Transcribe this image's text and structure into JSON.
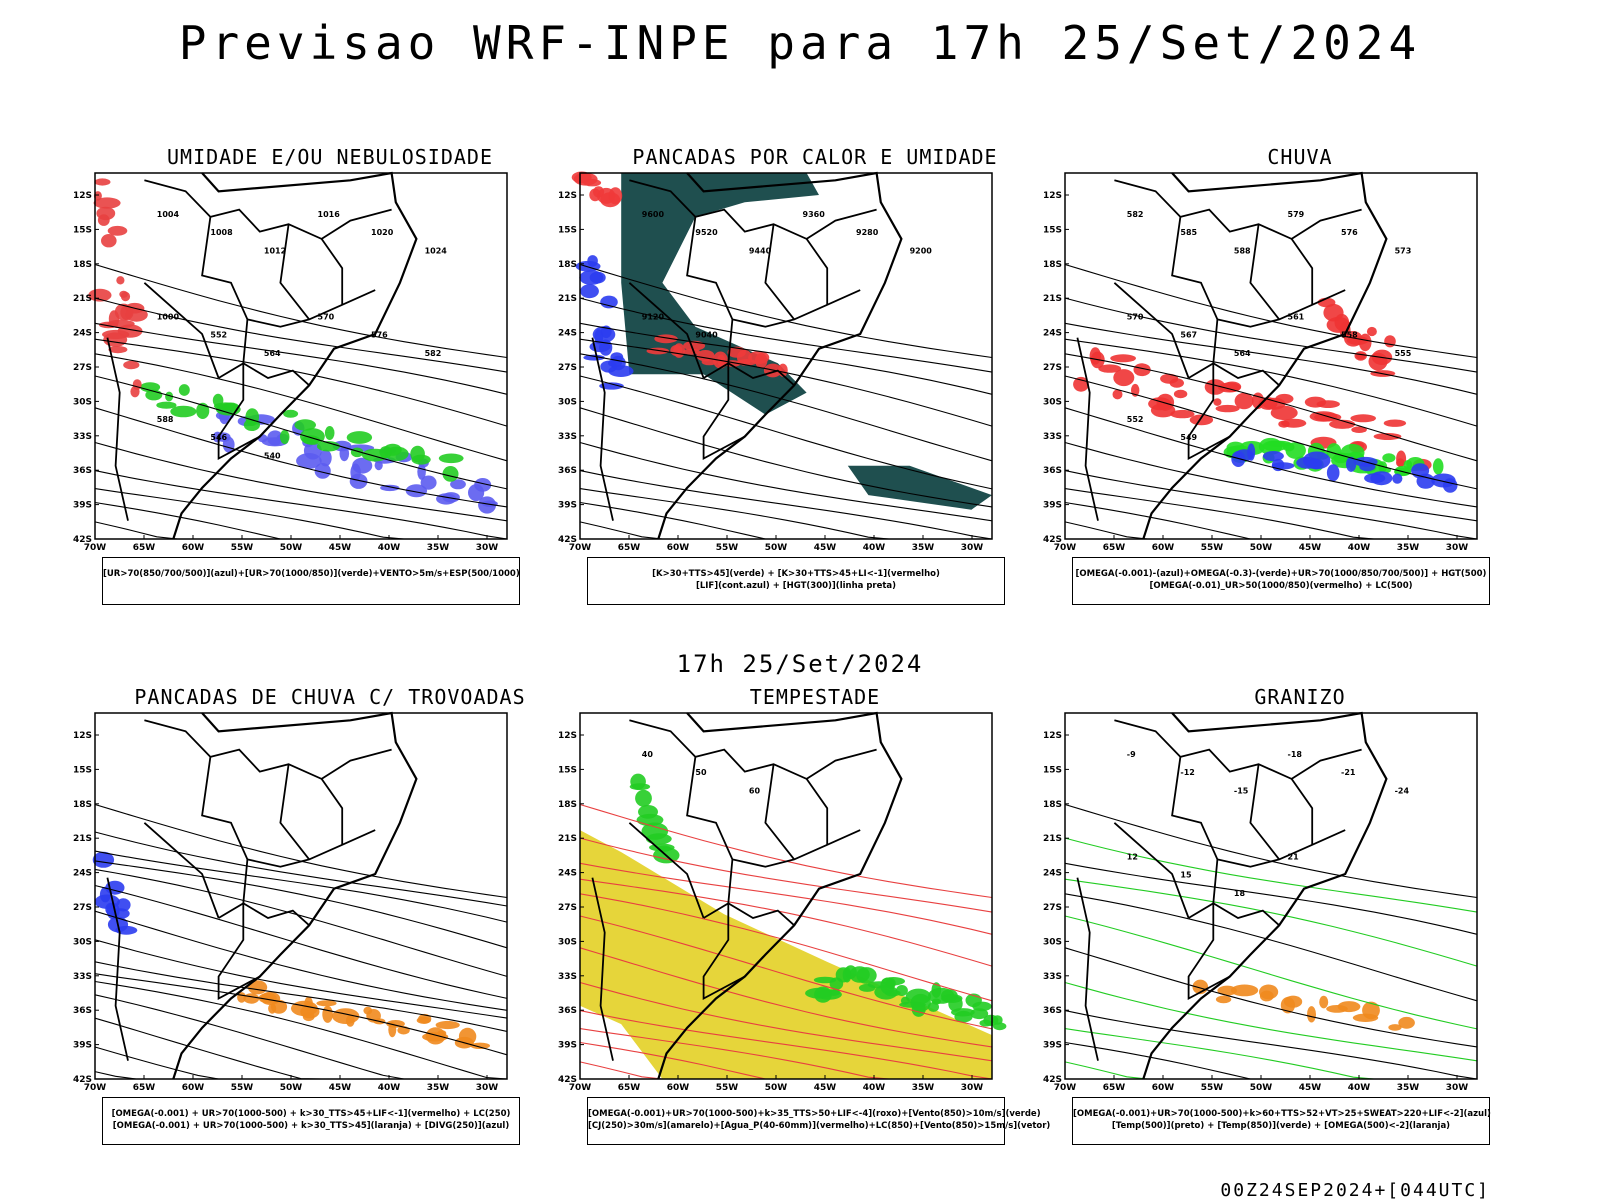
{
  "title": "Previsao WRF-INPE  para 17h 25/Set/2024",
  "mid_title": "17h 25/Set/2024",
  "footer": "00Z24SEP2024+[044UTC]",
  "axes": {
    "lat_labels": [
      "12S",
      "15S",
      "18S",
      "21S",
      "24S",
      "27S",
      "30S",
      "33S",
      "36S",
      "39S",
      "42S"
    ],
    "lon_labels": [
      "70W",
      "65W",
      "60W",
      "55W",
      "50W",
      "45W",
      "40W",
      "35W",
      "30W"
    ]
  },
  "chart_data": [
    {
      "type": "heatmap",
      "title": "UMIDADE E/OU NEBULOSIDADE",
      "legend": [
        "[UR>70(850/700/500)](azul)+[UR>70(1000/850)](verde)+VENTO>5m/s+ESP(500/1000)"
      ],
      "contour_labels": [
        "1004",
        "1008",
        "1012",
        "1016",
        "1020",
        "1024",
        "1000",
        "552",
        "564",
        "570",
        "576",
        "582",
        "588",
        "546",
        "540"
      ],
      "colors": {
        "blue": "#5c5cf0",
        "green": "#22cc22",
        "red": "#e84040"
      }
    },
    {
      "type": "heatmap",
      "title": "PANCADAS POR CALOR E UMIDADE",
      "legend": [
        "[K>30+TTS>45](verde) + [K>30+TTS>45+LI<-1](vermelho)",
        "[LIF](cont.azul) + [HGT(300)](linha preta)"
      ],
      "contour_labels": [
        "9600",
        "9520",
        "9440",
        "9360",
        "9280",
        "9200",
        "9120",
        "9040"
      ],
      "colors": {
        "teal": "#1f4f4f",
        "red": "#f03a3a",
        "blue": "#2b3cf0"
      }
    },
    {
      "type": "heatmap",
      "title": "CHUVA",
      "legend": [
        "[OMEGA(-0.001)-(azul)+OMEGA(-0.3)-(verde)+UR>70(1000/850/700/500)] + HGT(500)",
        "[OMEGA(-0.01)_UR>50(1000/850)(vermelho) + LC(500)"
      ],
      "contour_labels": [
        "582",
        "585",
        "588",
        "579",
        "576",
        "573",
        "570",
        "567",
        "564",
        "561",
        "558",
        "555",
        "552",
        "549"
      ],
      "colors": {
        "red": "#ee3333",
        "green": "#22dd22",
        "blue": "#2b3cf0"
      }
    },
    {
      "type": "heatmap",
      "title": "PANCADAS DE CHUVA C/ TROVOADAS",
      "legend": [
        "[OMEGA(-0.001) + UR>70(1000-500) + k>30_TTS>45+LIF<-1](vermelho) + LC(250)",
        "[OMEGA(-0.001) + UR>70(1000-500) + k>30_TTS>45](laranja) + [DIVG(250)](azul)"
      ],
      "contour_labels": [],
      "colors": {
        "orange": "#f08a1e",
        "blue": "#2b3cf0"
      }
    },
    {
      "type": "heatmap",
      "title": "TEMPESTADE",
      "legend": [
        "[OMEGA(-0.001)+UR>70(1000-500)+k>35_TTS>50+LIF<-4](roxo)+[Vento(850)>10m/s](verde)",
        "[CJ(250)>30m/s](amarelo)+[Agua_P(40-60mm)](vermelho)+LC(850)+[Vento(850)>15m/s](vetor)"
      ],
      "contour_labels": [
        "40",
        "50",
        "60"
      ],
      "colors": {
        "yellow": "#e6d53a",
        "green": "#22cc22",
        "red": "#e84040"
      }
    },
    {
      "type": "heatmap",
      "title": "GRANIZO",
      "legend": [
        "[OMEGA(-0.001)+UR>70(1000-500)+k>60+TTS>52+VT>25+SWEAT>220+LIF<-2](azul)",
        "[Temp(500)](preto) + [Temp(850)](verde) + [OMEGA(500)<-2](laranja)"
      ],
      "contour_labels": [
        "-9",
        "-12",
        "-15",
        "-18",
        "-21",
        "-24",
        "12",
        "15",
        "18",
        "21"
      ],
      "colors": {
        "green": "#22cc22",
        "orange": "#f08a1e"
      }
    }
  ]
}
